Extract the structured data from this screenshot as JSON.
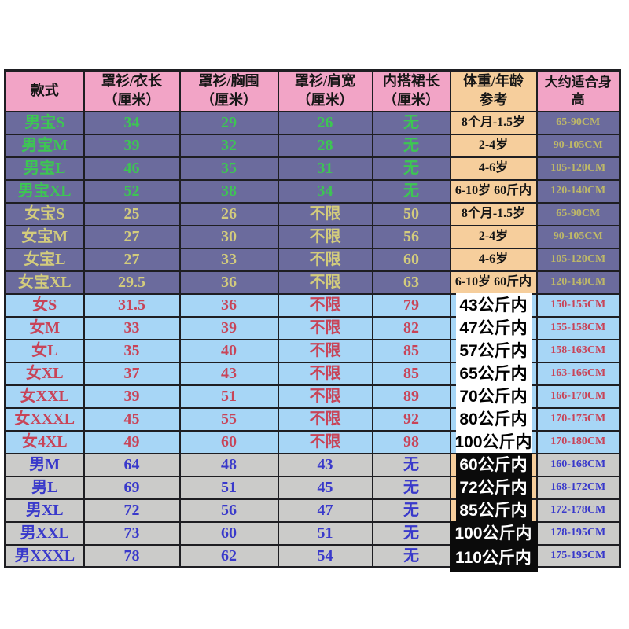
{
  "colors": {
    "pink": "#F2A4C6",
    "peach": "#F6CE9C",
    "purple": "#6B6B9D",
    "lightblue": "#A7D6F6",
    "gray": "#CBCBC9",
    "green": "#3DC653",
    "khaki": "#D3CC7C",
    "khakiDark": "#BEB868",
    "red": "#C84458",
    "blue": "#3939CB",
    "stickerBlack": "#0B0B0B",
    "border": "#1E1E22"
  },
  "chart_data": {
    "type": "table",
    "columns": [
      "款式",
      "罩衫/衣长\n（厘米）",
      "罩衫/胸围\n（厘米）",
      "罩衫/肩宽\n（厘米）",
      "内搭裙长\n（厘米）",
      "体重/年龄\n参考",
      "大约适合身高"
    ],
    "rows": [
      {
        "style": "男宝S",
        "coat_length": "34",
        "chest": "29",
        "shoulder": "26",
        "skirt_length": "无",
        "weight_age": "8个月-1.5岁",
        "height": "65-90CM",
        "group": "baby-boy"
      },
      {
        "style": "男宝M",
        "coat_length": "39",
        "chest": "32",
        "shoulder": "28",
        "skirt_length": "无",
        "weight_age": "2-4岁",
        "height": "90-105CM",
        "group": "baby-boy"
      },
      {
        "style": "男宝L",
        "coat_length": "46",
        "chest": "35",
        "shoulder": "31",
        "skirt_length": "无",
        "weight_age": "4-6岁",
        "height": "105-120CM",
        "group": "baby-boy"
      },
      {
        "style": "男宝XL",
        "coat_length": "52",
        "chest": "38",
        "shoulder": "34",
        "skirt_length": "无",
        "weight_age": "6-10岁 60斤内",
        "height": "120-140CM",
        "group": "baby-boy"
      },
      {
        "style": "女宝S",
        "coat_length": "25",
        "chest": "26",
        "shoulder": "不限",
        "skirt_length": "50",
        "weight_age": "8个月-1.5岁",
        "height": "65-90CM",
        "group": "baby-girl"
      },
      {
        "style": "女宝M",
        "coat_length": "27",
        "chest": "30",
        "shoulder": "不限",
        "skirt_length": "56",
        "weight_age": "2-4岁",
        "height": "90-105CM",
        "group": "baby-girl"
      },
      {
        "style": "女宝L",
        "coat_length": "27",
        "chest": "33",
        "shoulder": "不限",
        "skirt_length": "60",
        "weight_age": "4-6岁",
        "height": "105-120CM",
        "group": "baby-girl"
      },
      {
        "style": "女宝XL",
        "coat_length": "29.5",
        "chest": "36",
        "shoulder": "不限",
        "skirt_length": "63",
        "weight_age": "6-10岁 60斤内",
        "height": "120-140CM",
        "group": "baby-girl"
      },
      {
        "style": "女S",
        "coat_length": "31.5",
        "chest": "36",
        "shoulder": "不限",
        "skirt_length": "79",
        "weight_age": "43公斤内",
        "height": "150-155CM",
        "group": "woman"
      },
      {
        "style": "女M",
        "coat_length": "33",
        "chest": "39",
        "shoulder": "不限",
        "skirt_length": "82",
        "weight_age": "47公斤内",
        "height": "155-158CM",
        "group": "woman"
      },
      {
        "style": "女L",
        "coat_length": "35",
        "chest": "40",
        "shoulder": "不限",
        "skirt_length": "85",
        "weight_age": "57公斤内",
        "height": "158-163CM",
        "group": "woman"
      },
      {
        "style": "女XL",
        "coat_length": "37",
        "chest": "43",
        "shoulder": "不限",
        "skirt_length": "85",
        "weight_age": "65公斤内",
        "height": "163-166CM",
        "group": "woman"
      },
      {
        "style": "女XXL",
        "coat_length": "39",
        "chest": "51",
        "shoulder": "不限",
        "skirt_length": "89",
        "weight_age": "70公斤内",
        "height": "166-170CM",
        "group": "woman"
      },
      {
        "style": "女XXXL",
        "coat_length": "45",
        "chest": "55",
        "shoulder": "不限",
        "skirt_length": "92",
        "weight_age": "80公斤内",
        "height": "170-175CM",
        "group": "woman"
      },
      {
        "style": "女4XL",
        "coat_length": "49",
        "chest": "60",
        "shoulder": "不限",
        "skirt_length": "98",
        "weight_age": "100公斤内",
        "height": "170-180CM",
        "group": "woman"
      },
      {
        "style": "男M",
        "coat_length": "64",
        "chest": "48",
        "shoulder": "43",
        "skirt_length": "无",
        "weight_age": "60公斤内",
        "height": "160-168CM",
        "group": "man"
      },
      {
        "style": "男L",
        "coat_length": "69",
        "chest": "51",
        "shoulder": "45",
        "skirt_length": "无",
        "weight_age": "72公斤内",
        "height": "168-172CM",
        "group": "man"
      },
      {
        "style": "男XL",
        "coat_length": "72",
        "chest": "56",
        "shoulder": "47",
        "skirt_length": "无",
        "weight_age": "85公斤内",
        "height": "172-178CM",
        "group": "man"
      },
      {
        "style": "男XXL",
        "coat_length": "73",
        "chest": "60",
        "shoulder": "51",
        "skirt_length": "无",
        "weight_age": "100公斤内",
        "height": "178-195CM",
        "group": "man",
        "wide": true
      },
      {
        "style": "男XXXL",
        "coat_length": "78",
        "chest": "62",
        "shoulder": "54",
        "skirt_length": "无",
        "weight_age": "110公斤内",
        "height": "175-195CM",
        "group": "man",
        "wide": true
      }
    ]
  }
}
